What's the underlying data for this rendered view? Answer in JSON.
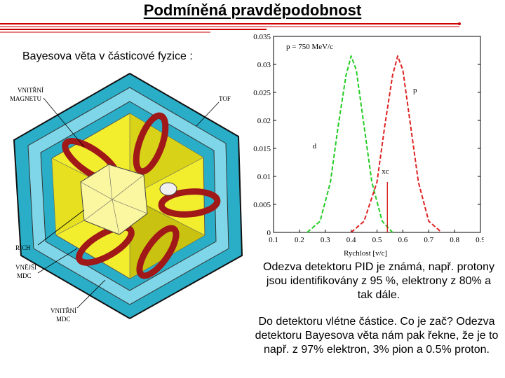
{
  "title": "Podmíněná pravděpodobnost",
  "subtitle": "Bayesova věta v částicové fyzice :",
  "detector": {
    "labels": {
      "magnet": [
        "VNITŘNÍ",
        "MAGNETU"
      ],
      "tof": "TOF",
      "rich": "RICH",
      "outer_mdc": [
        "VNĚJŠÍ",
        "MDC"
      ],
      "inner_mdc": [
        "VNITŘNÍ",
        "MDC"
      ]
    },
    "colors": {
      "frame": "#2aaec8",
      "panel": "#f2ee2e",
      "coil": "#a01818"
    }
  },
  "chart_data": {
    "type": "line",
    "annotation": "p = 750 MeV/c",
    "xlabel": "Rychlost [v/c]",
    "ylabel": "",
    "xlim": [
      0.1,
      0.9
    ],
    "ylim": [
      0,
      0.035
    ],
    "x_ticks": [
      "0.1",
      "0.2",
      "0.3",
      "0.4",
      "0.5",
      "0.6",
      "0.7",
      "0.8",
      "0.9"
    ],
    "y_ticks": [
      "0",
      "0.005",
      "0.01",
      "0.015",
      "0.02",
      "0.025",
      "0.03",
      "0.035"
    ],
    "series": [
      {
        "name": "d",
        "color": "#22cc22",
        "style": "dashed",
        "x": [
          0.23,
          0.28,
          0.32,
          0.35,
          0.38,
          0.4,
          0.42,
          0.45,
          0.48,
          0.52,
          0.56
        ],
        "y": [
          0,
          0.002,
          0.009,
          0.019,
          0.028,
          0.0315,
          0.029,
          0.019,
          0.009,
          0.002,
          0
        ]
      },
      {
        "name": "p",
        "color": "#dd2222",
        "style": "dashed",
        "x": [
          0.4,
          0.45,
          0.5,
          0.53,
          0.56,
          0.58,
          0.6,
          0.63,
          0.66,
          0.7,
          0.75
        ],
        "y": [
          0,
          0.002,
          0.009,
          0.019,
          0.028,
          0.0315,
          0.029,
          0.019,
          0.009,
          0.002,
          0
        ]
      }
    ],
    "marker": {
      "label": "xc",
      "x": 0.54
    }
  },
  "text1": "Odezva detektoru PID je známá, např. protony jsou identifikovány z 95 %, elektrony z 80% a tak dále.",
  "text2": "Do detektoru vlétne částice. Co je zač? Odezva detektoru Bayesova věta nám pak řekne, že je to např. z 97% elektron, 3% pion a 0.5% proton."
}
